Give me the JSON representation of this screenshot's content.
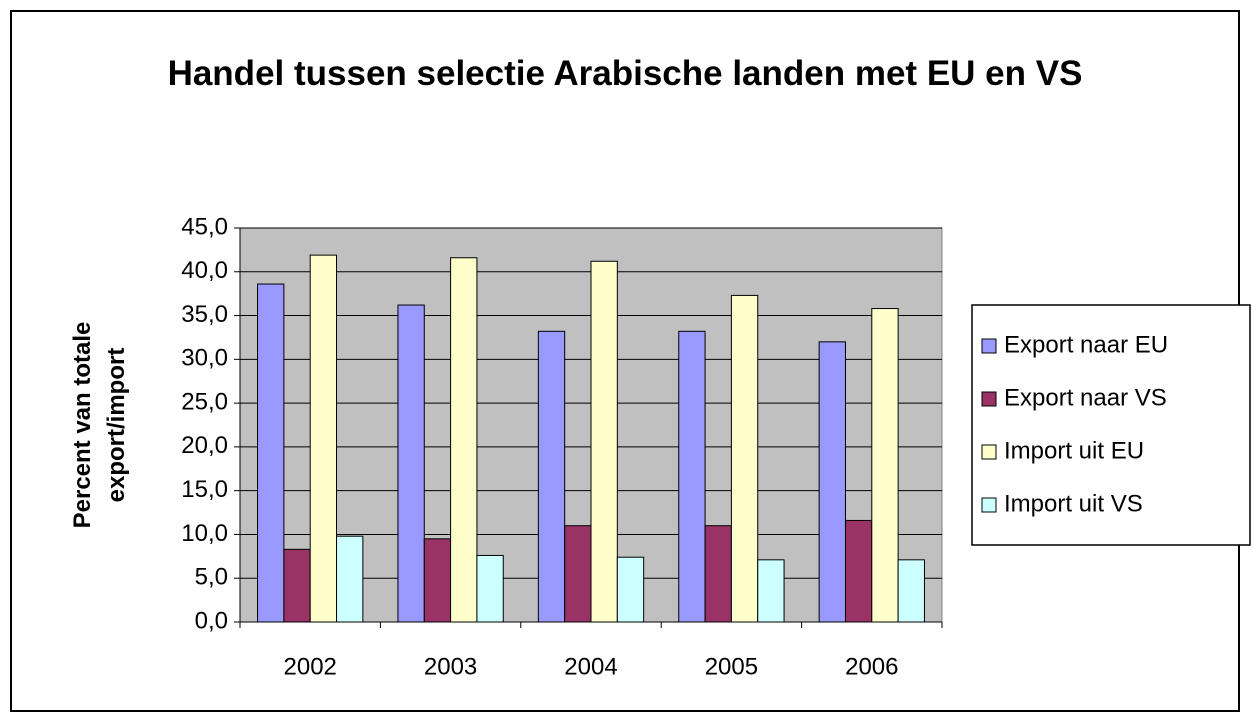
{
  "chart_data": {
    "type": "bar",
    "title": "Handel tussen selectie Arabische landen met EU en VS",
    "y_label": "Percent van totale export/import",
    "categories": [
      "2002",
      "2003",
      "2004",
      "2005",
      "2006"
    ],
    "series": [
      {
        "name": "Export naar EU",
        "color": "#9999ff",
        "values": [
          38.6,
          36.2,
          33.2,
          33.2,
          32.0
        ]
      },
      {
        "name": "Export naar VS",
        "color": "#993366",
        "values": [
          8.3,
          9.5,
          11.0,
          11.0,
          11.6
        ]
      },
      {
        "name": "Import uit EU",
        "color": "#ffffcc",
        "values": [
          41.9,
          41.6,
          41.2,
          37.3,
          35.8
        ]
      },
      {
        "name": "Import uit VS",
        "color": "#ccffff",
        "values": [
          9.8,
          7.6,
          7.4,
          7.1,
          7.1
        ]
      }
    ],
    "ylim": [
      0,
      45
    ],
    "yticks": [
      {
        "value": 0,
        "label": "0,0"
      },
      {
        "value": 5,
        "label": "5,0"
      },
      {
        "value": 10,
        "label": "10,0"
      },
      {
        "value": 15,
        "label": "15,0"
      },
      {
        "value": 20,
        "label": "20,0"
      },
      {
        "value": 25,
        "label": "25,0"
      },
      {
        "value": 30,
        "label": "30,0"
      },
      {
        "value": 35,
        "label": "35,0"
      },
      {
        "value": 40,
        "label": "40,0"
      },
      {
        "value": 45,
        "label": "45,0"
      }
    ],
    "grid": true,
    "plot_background": "#c0c0c0",
    "legend": "right"
  }
}
